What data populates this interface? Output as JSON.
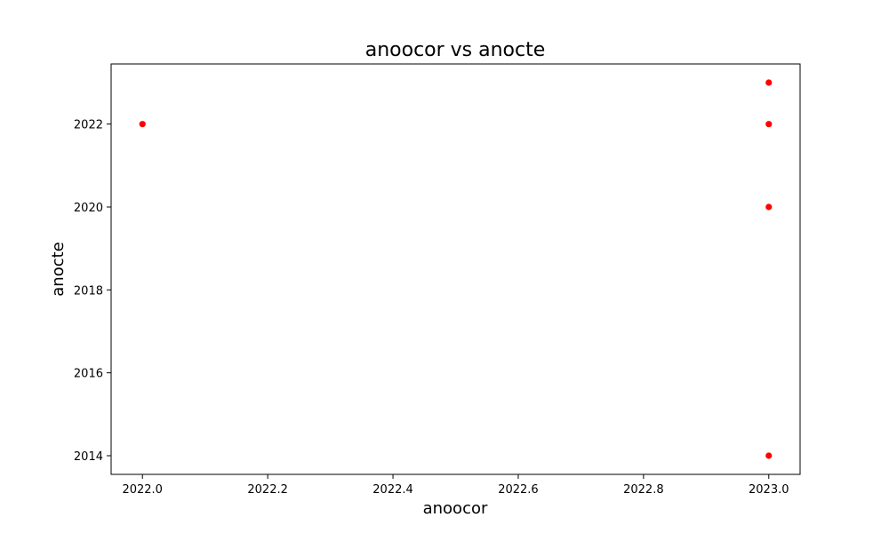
{
  "chart_data": {
    "type": "scatter",
    "title": "anoocor vs anocte",
    "xlabel": "anoocor",
    "ylabel": "anocte",
    "xlim": [
      2021.95,
      2023.05
    ],
    "ylim": [
      2013.55,
      2023.45
    ],
    "xticks": [
      2022.0,
      2022.2,
      2022.4,
      2022.6,
      2022.8,
      2023.0
    ],
    "xtick_labels": [
      "2022.0",
      "2022.2",
      "2022.4",
      "2022.6",
      "2022.8",
      "2023.0"
    ],
    "yticks": [
      2014,
      2016,
      2018,
      2020,
      2022
    ],
    "ytick_labels": [
      "2014",
      "2016",
      "2018",
      "2020",
      "2022"
    ],
    "grid": false,
    "marker_color": "#ff0000",
    "points": [
      {
        "x": 2022.0,
        "y": 2022
      },
      {
        "x": 2023.0,
        "y": 2023
      },
      {
        "x": 2023.0,
        "y": 2022
      },
      {
        "x": 2023.0,
        "y": 2020
      },
      {
        "x": 2023.0,
        "y": 2014
      }
    ]
  }
}
